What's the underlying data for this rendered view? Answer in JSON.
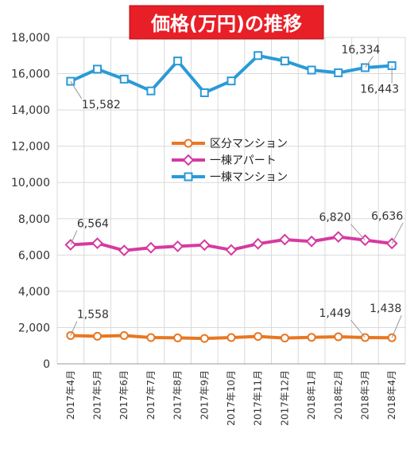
{
  "chart_data": {
    "type": "line",
    "title": "価格(万円)の推移",
    "categories": [
      "2017年4月",
      "2017年5月",
      "2017年6月",
      "2017年7月",
      "2017年8月",
      "2017年9月",
      "2017年10月",
      "2017年11月",
      "2017年12月",
      "2018年1月",
      "2018年2月",
      "2018年3月",
      "2018年4月"
    ],
    "ylim": [
      0,
      18000
    ],
    "yticks": [
      "0",
      "2,000",
      "4,000",
      "6,000",
      "8,000",
      "10,000",
      "12,000",
      "14,000",
      "16,000",
      "18,000"
    ],
    "grid": true,
    "legend_position": "center",
    "series": [
      {
        "name": "区分マンション",
        "color": "#E87722",
        "marker": "circle",
        "values": [
          1558,
          1520,
          1560,
          1450,
          1430,
          1400,
          1450,
          1510,
          1420,
          1460,
          1490,
          1449,
          1438
        ]
      },
      {
        "name": "一棟アパート",
        "color": "#D63AA0",
        "marker": "diamond",
        "values": [
          6564,
          6650,
          6250,
          6400,
          6480,
          6550,
          6280,
          6620,
          6850,
          6750,
          7000,
          6820,
          6636
        ]
      },
      {
        "name": "一棟マンション",
        "color": "#2A9AD8",
        "marker": "square",
        "values": [
          15582,
          16250,
          15700,
          15050,
          16700,
          14950,
          15600,
          17000,
          16700,
          16200,
          16050,
          16334,
          16443
        ]
      }
    ],
    "annotations": [
      {
        "series": 2,
        "index": 0,
        "text": "15,582"
      },
      {
        "series": 2,
        "index": 11,
        "text": "16,334"
      },
      {
        "series": 2,
        "index": 12,
        "text": "16,443"
      },
      {
        "series": 1,
        "index": 0,
        "text": "6,564"
      },
      {
        "series": 1,
        "index": 11,
        "text": "6,820"
      },
      {
        "series": 1,
        "index": 12,
        "text": "6,636"
      },
      {
        "series": 0,
        "index": 0,
        "text": "1,558"
      },
      {
        "series": 0,
        "index": 11,
        "text": "1,449"
      },
      {
        "series": 0,
        "index": 12,
        "text": "1,438"
      }
    ]
  }
}
